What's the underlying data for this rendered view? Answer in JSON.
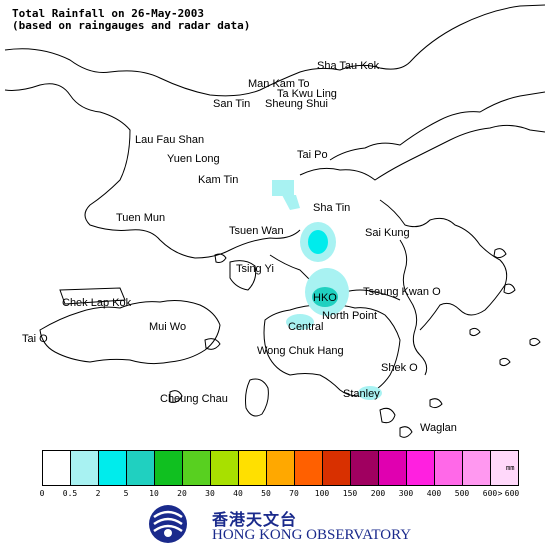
{
  "title": {
    "line1": "Total Rainfall on 26-May-2003",
    "line2": "(based on raingauges and radar data)"
  },
  "places": [
    {
      "key": "sha-tau-kok",
      "label": "Sha Tau Kok"
    },
    {
      "key": "man-kam-to",
      "label": "Man Kam To"
    },
    {
      "key": "ta-kwu-ling",
      "label": "Ta Kwu Ling"
    },
    {
      "key": "san-tin",
      "label": "San Tin"
    },
    {
      "key": "sheung-shui",
      "label": "Sheung Shui"
    },
    {
      "key": "lau-fau-shan",
      "label": "Lau Fau Shan"
    },
    {
      "key": "yuen-long",
      "label": "Yuen Long"
    },
    {
      "key": "tai-po",
      "label": "Tai Po"
    },
    {
      "key": "kam-tin",
      "label": "Kam Tin"
    },
    {
      "key": "sha-tin",
      "label": "Sha Tin"
    },
    {
      "key": "tuen-mun",
      "label": "Tuen Mun"
    },
    {
      "key": "tsuen-wan",
      "label": "Tsuen Wan"
    },
    {
      "key": "sai-kung",
      "label": "Sai Kung"
    },
    {
      "key": "tsing-yi",
      "label": "Tsing Yi"
    },
    {
      "key": "hko",
      "label": "HKO"
    },
    {
      "key": "tseung-kwan-o",
      "label": "Tseung Kwan O"
    },
    {
      "key": "chek-lap-kok",
      "label": "Chek Lap Kok"
    },
    {
      "key": "north-point",
      "label": "North Point"
    },
    {
      "key": "mui-wo",
      "label": "Mui Wo"
    },
    {
      "key": "central",
      "label": "Central"
    },
    {
      "key": "tai-o",
      "label": "Tai O"
    },
    {
      "key": "wong-chuk-hang",
      "label": "Wong Chuk Hang"
    },
    {
      "key": "shek-o",
      "label": "Shek O"
    },
    {
      "key": "cheung-chau",
      "label": "Cheung Chau"
    },
    {
      "key": "stanley",
      "label": "Stanley"
    },
    {
      "key": "waglan",
      "label": "Waglan"
    }
  ],
  "rain_areas": [
    {
      "key": "kam-tin-patch",
      "range_mm": "0.5-2",
      "color": "#a8f2f2"
    },
    {
      "key": "tsuen-wan-patch",
      "range_mm": "0.5-2",
      "color": "#a8f2f2"
    },
    {
      "key": "tsuen-wan-core",
      "range_mm": "2-5",
      "color": "#00ecec"
    },
    {
      "key": "kowloon-patch",
      "range_mm": "0.5-2",
      "color": "#a8f2f2"
    },
    {
      "key": "hko-core",
      "range_mm": "5-10",
      "color": "#20d0c0"
    },
    {
      "key": "central-patch",
      "range_mm": "0.5-2",
      "color": "#a8f2f2"
    },
    {
      "key": "stanley-patch",
      "range_mm": "0.5-2",
      "color": "#a8f2f2"
    }
  ],
  "legend": {
    "unit": "mm",
    "colors": [
      "#ffffff",
      "#a8f2f2",
      "#00ecec",
      "#20d0c0",
      "#10c020",
      "#58d020",
      "#a8e000",
      "#ffe000",
      "#ffa800",
      "#ff6000",
      "#d83000",
      "#a00060",
      "#e000b0",
      "#ff20e0",
      "#ff68e8",
      "#ff98f0",
      "#ffd8fa"
    ],
    "ticks": [
      "0",
      "0.5",
      "2",
      "5",
      "10",
      "20",
      "30",
      "40",
      "50",
      "70",
      "100",
      "150",
      "200",
      "300",
      "400",
      "500",
      "600",
      ">",
      "600"
    ]
  },
  "organisation": {
    "name_cn": "香港天文台",
    "name_en": "HONG KONG OBSERVATORY",
    "logo_icon": "hko-logo-icon",
    "logo_color": "#1a2a8c"
  }
}
